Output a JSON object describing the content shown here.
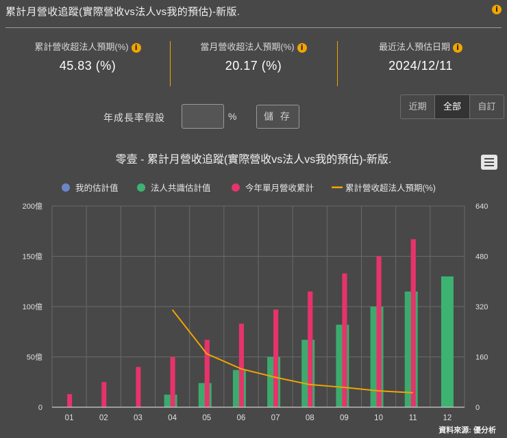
{
  "header": {
    "title": "累計月營收追蹤(實際營收vs法人vs我的預估)-新版.",
    "info_icon": "info-icon"
  },
  "stats": [
    {
      "label": "累計營收超法人預期(%)",
      "value": "45.83 (%)",
      "has_info": true
    },
    {
      "label": "當月營收超法人預期(%)",
      "value": "20.17 (%)",
      "has_info": true
    },
    {
      "label": "最近法人預估日期",
      "value": "2024/12/11",
      "has_info": true
    }
  ],
  "controls": {
    "growth_label": "年成長率假設",
    "growth_value": "",
    "percent_sign": "%",
    "save_label": "儲 存",
    "range_tabs": [
      "近期",
      "全部",
      "自訂"
    ],
    "active_tab": "全部"
  },
  "colors": {
    "accent": "#f0a500",
    "my_estimate": "#6b86c8",
    "consensus": "#3cb371",
    "monthly_cumulative": "#e6336b",
    "exceed_line": "#f0a500"
  },
  "chart_data": {
    "type": "bar",
    "title": "零壹 - 累計月營收追蹤(實際營收vs法人vs我的預估)-新版.",
    "categories": [
      "01",
      "02",
      "03",
      "04",
      "05",
      "06",
      "07",
      "08",
      "09",
      "10",
      "11",
      "12"
    ],
    "y_left": {
      "ticks": [
        "0",
        "50億",
        "100億",
        "150億",
        "200億"
      ],
      "range": [
        0,
        200
      ]
    },
    "y_right": {
      "ticks": [
        "0",
        "160",
        "320",
        "480",
        "640"
      ],
      "range": [
        0,
        640
      ]
    },
    "legend_position": "top",
    "series": [
      {
        "name": "我的估計值",
        "type": "bar",
        "axis": "left",
        "values": [
          null,
          null,
          null,
          null,
          null,
          null,
          null,
          null,
          null,
          null,
          null,
          null
        ]
      },
      {
        "name": "法人共識估計值",
        "type": "bar",
        "axis": "left",
        "values": [
          null,
          null,
          null,
          12.5,
          24,
          37,
          50,
          67,
          82,
          100,
          115,
          130
        ]
      },
      {
        "name": "今年單月營收累計",
        "type": "bar",
        "axis": "left",
        "values": [
          13,
          25,
          40,
          50,
          67,
          83,
          97,
          115,
          133,
          150,
          167,
          null
        ]
      },
      {
        "name": "累計營收超法人預期(%)",
        "type": "line",
        "axis": "right",
        "values": [
          null,
          null,
          null,
          310,
          170,
          122,
          95,
          72,
          63,
          52,
          46,
          null
        ]
      }
    ],
    "source": "資料來源: 優分析"
  }
}
